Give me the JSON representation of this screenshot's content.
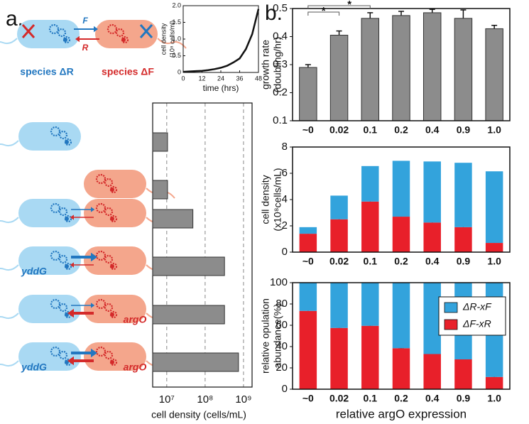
{
  "figure": {
    "panel_labels": [
      "a.",
      "b."
    ]
  },
  "diagram": {
    "species": [
      "species ΔR",
      "species ΔF"
    ],
    "fluxes": [
      "F",
      "R"
    ],
    "genes": [
      "yddG",
      "argO",
      "yddG",
      "argO"
    ]
  },
  "chart_data": [
    {
      "type": "line",
      "xlabel": "time (hrs)",
      "ylabel": [
        "cell density",
        "(10⁸ cells/ml)"
      ],
      "x": [
        0,
        4,
        8,
        12,
        16,
        20,
        24,
        28,
        32,
        36,
        40,
        44,
        48
      ],
      "values": [
        0.02,
        0.03,
        0.04,
        0.05,
        0.07,
        0.1,
        0.14,
        0.2,
        0.3,
        0.42,
        0.7,
        1.15,
        1.9
      ],
      "color": "#111111",
      "xlim": [
        0,
        48
      ],
      "xticks": [
        0,
        12,
        24,
        36,
        48
      ],
      "ylim": [
        0,
        2
      ],
      "yticks": [
        0,
        0.5,
        {
          "value": 1,
          "label": "1.0"
        },
        1.5,
        {
          "value": 2,
          "label": "2.0"
        }
      ]
    },
    {
      "type": "hbar",
      "xlabel": "cell density (cells/mL)",
      "log_scale": true,
      "grid": true,
      "categories": [
        null,
        null,
        null,
        null,
        null,
        null
      ],
      "values": [
        10500000,
        10500000,
        48000000,
        320000000,
        320000000,
        740000000
      ],
      "color": "#8c8c8c",
      "xlim": [
        4300000,
        1670000000
      ],
      "xticks": [
        {
          "value": 10000000,
          "label": "10⁷"
        },
        {
          "value": 100000000,
          "label": "10⁸"
        },
        {
          "value": 1000000000,
          "label": "10⁹"
        }
      ]
    },
    {
      "type": "bar",
      "ylabel": [
        "growth rate",
        "(doubling/hr)"
      ],
      "categories": [
        "~0",
        "0.02",
        "0.1",
        "0.2",
        "0.4",
        "0.9",
        "1.0"
      ],
      "values": [
        0.29,
        0.405,
        0.465,
        0.475,
        0.485,
        0.465,
        0.428
      ],
      "errors": [
        0.01,
        0.015,
        0.02,
        0.015,
        0.012,
        0.03,
        0.012
      ],
      "color": "#8c8c8c",
      "ylim": [
        0.1,
        0.5
      ],
      "yticks": [
        0.1,
        0.2,
        0.3,
        0.4,
        0.5
      ],
      "annotations": [
        "*",
        "*"
      ]
    },
    {
      "type": "stacked_bar",
      "ylabel": [
        "cell density",
        "(x10⁸cells/mL)"
      ],
      "categories": [
        "~0",
        "0.02",
        "0.1",
        "0.2",
        "0.4",
        "0.9",
        "1.0"
      ],
      "series": [
        {
          "name": "ΔF-xR",
          "color": "#e8202a",
          "values": [
            1.4,
            2.5,
            3.85,
            2.7,
            2.25,
            1.9,
            0.7
          ],
          "errors": [
            0.06,
            0.08,
            0.06,
            0.06,
            0.06,
            0.06,
            0.05
          ]
        },
        {
          "name": "ΔR-xF",
          "color": "#33a3dc",
          "values": [
            0.5,
            1.8,
            2.7,
            4.25,
            4.65,
            4.9,
            5.45
          ]
        }
      ],
      "ylim": [
        0,
        8
      ],
      "yticks": [
        0,
        2,
        4,
        6,
        8
      ]
    },
    {
      "type": "stacked_bar",
      "ylabel": [
        "relative opulation",
        "abundance(%)"
      ],
      "xlabel": "relative argO expression",
      "categories": [
        "~0",
        "0.02",
        "0.1",
        "0.2",
        "0.4",
        "0.9",
        "1.0"
      ],
      "series": [
        {
          "name": "ΔF-xR",
          "color": "#e8202a",
          "values": [
            73.5,
            57.5,
            59.5,
            38.5,
            33,
            28,
            11.5
          ],
          "errors": [
            0.8,
            0.6,
            0.6,
            0.5,
            0.6,
            0.6,
            0.6
          ]
        },
        {
          "name": "ΔR-xF",
          "color": "#33a3dc",
          "values": [
            26.5,
            42.5,
            40.5,
            61.5,
            67,
            72,
            88.5
          ]
        }
      ],
      "ylim": [
        0,
        100
      ],
      "yticks": [
        0,
        20,
        40,
        60,
        80,
        100
      ],
      "legend": "upper right"
    }
  ]
}
